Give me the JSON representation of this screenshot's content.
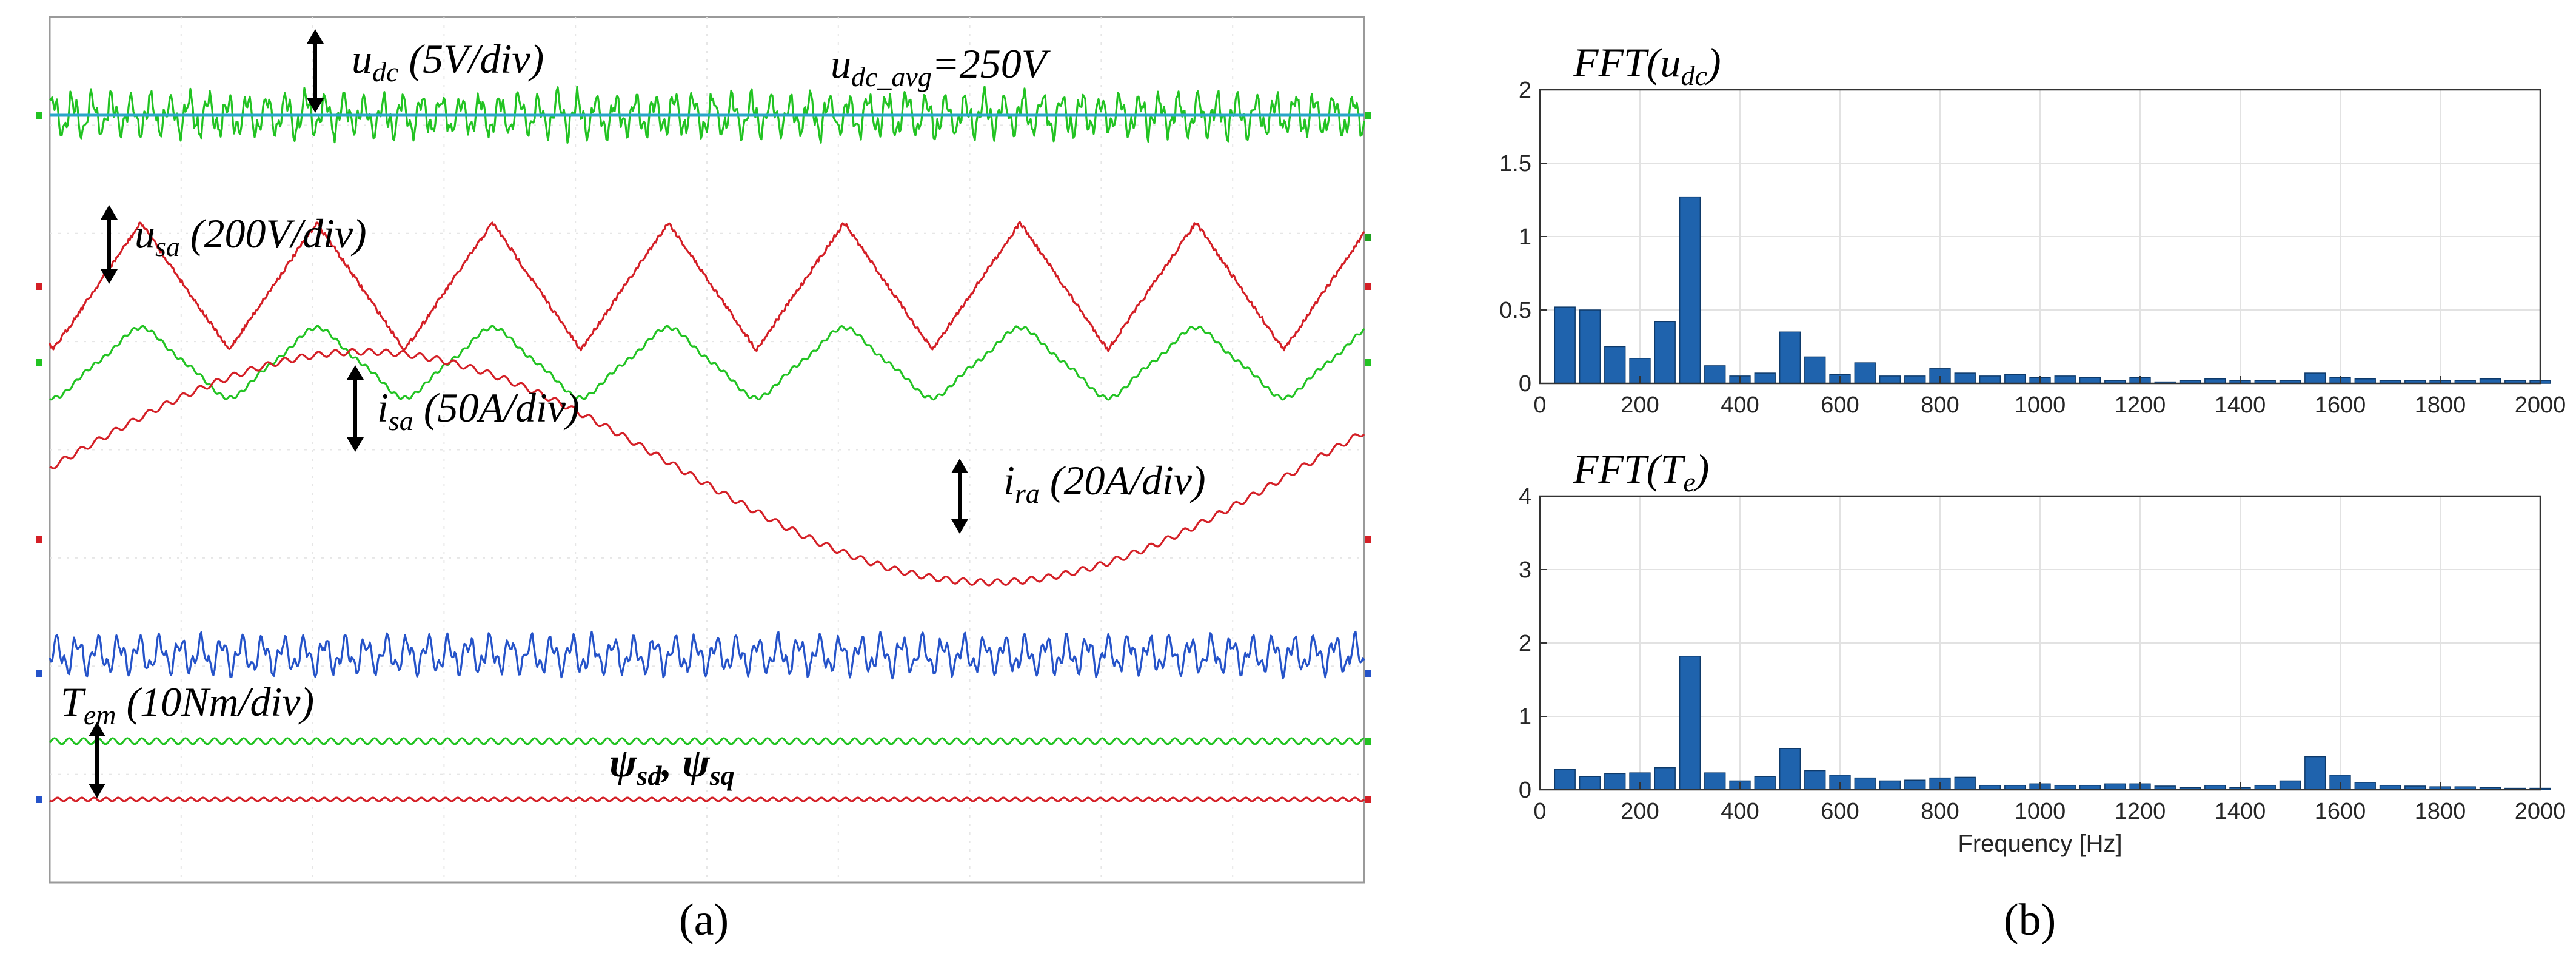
{
  "panel_labels": {
    "a": "(a)",
    "b": "(b)"
  },
  "scope": {
    "annotations": {
      "udc": [
        "u",
        "dc",
        " (5V/div)"
      ],
      "udc_avg": [
        "u",
        "dc_avg",
        "=250V"
      ],
      "usa": [
        "u",
        "sa",
        " (200V/div)"
      ],
      "isa": [
        "i",
        "sa",
        " (50A/div)"
      ],
      "ira": [
        "i",
        "ra",
        " (20A/div)"
      ],
      "tem": [
        "T",
        "em",
        " (10Nm/div)"
      ],
      "psi": [
        "ψ",
        "sd",
        ", ",
        "ψ",
        "sq"
      ]
    },
    "colors": {
      "udc": "#22c322",
      "udc_avg": "#2aa6c8",
      "usa": "#d41f26",
      "isa": "#22c322",
      "ira": "#d41f26",
      "blue_ripple": "#2553c9",
      "tem": "#22c322",
      "psi": "#d41f26"
    }
  },
  "chart_data": [
    {
      "type": "bar",
      "title_parts": [
        "FFT(u",
        "dc",
        ")"
      ],
      "xlabel": "",
      "xlim": [
        0,
        2000
      ],
      "ylim": [
        0,
        2
      ],
      "xticks": [
        0,
        200,
        400,
        600,
        800,
        1000,
        1200,
        1400,
        1600,
        1800,
        2000
      ],
      "yticks": [
        0,
        0.5,
        1,
        1.5,
        2
      ],
      "ytick_labels": [
        "0",
        "0.5",
        "1",
        "1.5",
        "2"
      ],
      "grid": true,
      "bar_color": "#1f63ad",
      "x": [
        50,
        100,
        150,
        200,
        250,
        300,
        350,
        400,
        450,
        500,
        550,
        600,
        650,
        700,
        750,
        800,
        850,
        900,
        950,
        1000,
        1050,
        1100,
        1150,
        1200,
        1250,
        1300,
        1350,
        1400,
        1450,
        1500,
        1550,
        1600,
        1650,
        1700,
        1750,
        1800,
        1850,
        1900,
        1950,
        2000
      ],
      "values": [
        0.52,
        0.5,
        0.25,
        0.17,
        0.42,
        1.27,
        0.12,
        0.05,
        0.07,
        0.35,
        0.18,
        0.06,
        0.14,
        0.05,
        0.05,
        0.1,
        0.07,
        0.05,
        0.06,
        0.04,
        0.05,
        0.04,
        0.02,
        0.04,
        0.01,
        0.02,
        0.03,
        0.02,
        0.02,
        0.02,
        0.07,
        0.04,
        0.03,
        0.02,
        0.02,
        0.02,
        0.02,
        0.03,
        0.02,
        0.02
      ]
    },
    {
      "type": "bar",
      "title_parts": [
        "FFT(T",
        "e",
        ")"
      ],
      "xlabel": "Frequency [Hz]",
      "xlim": [
        0,
        2000
      ],
      "ylim": [
        0,
        4
      ],
      "xticks": [
        0,
        200,
        400,
        600,
        800,
        1000,
        1200,
        1400,
        1600,
        1800,
        2000
      ],
      "yticks": [
        0,
        1,
        2,
        3,
        4
      ],
      "ytick_labels": [
        "0",
        "1",
        "2",
        "3",
        "4"
      ],
      "grid": true,
      "bar_color": "#1f63ad",
      "x": [
        50,
        100,
        150,
        200,
        250,
        300,
        350,
        400,
        450,
        500,
        550,
        600,
        650,
        700,
        750,
        800,
        850,
        900,
        950,
        1000,
        1050,
        1100,
        1150,
        1200,
        1250,
        1300,
        1350,
        1400,
        1450,
        1500,
        1550,
        1600,
        1650,
        1700,
        1750,
        1800,
        1850,
        1900,
        1950,
        2000
      ],
      "values": [
        0.28,
        0.18,
        0.22,
        0.23,
        0.3,
        1.82,
        0.23,
        0.12,
        0.18,
        0.56,
        0.26,
        0.2,
        0.16,
        0.12,
        0.13,
        0.16,
        0.17,
        0.06,
        0.06,
        0.08,
        0.06,
        0.06,
        0.08,
        0.08,
        0.05,
        0.03,
        0.06,
        0.03,
        0.06,
        0.12,
        0.45,
        0.2,
        0.1,
        0.06,
        0.05,
        0.04,
        0.04,
        0.03,
        0.02,
        0.02
      ]
    }
  ]
}
